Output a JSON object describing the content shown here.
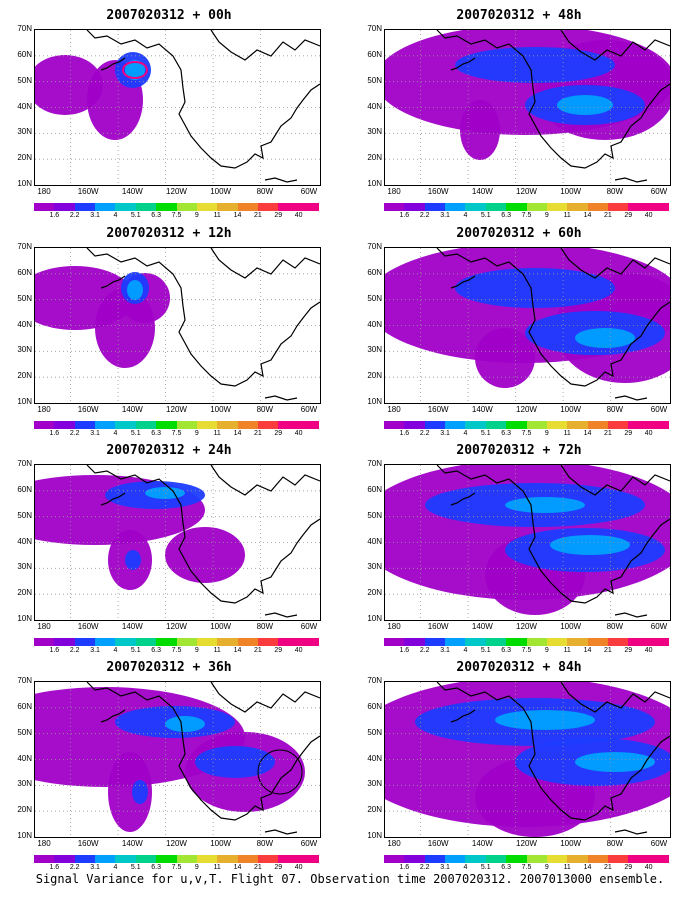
{
  "panels": [
    {
      "title": "2007020312 + 00h",
      "col": 0,
      "row": 0,
      "spread": 0
    },
    {
      "title": "2007020312 + 12h",
      "col": 0,
      "row": 1,
      "spread": 1
    },
    {
      "title": "2007020312 + 24h",
      "col": 0,
      "row": 2,
      "spread": 2
    },
    {
      "title": "2007020312 + 36h",
      "col": 0,
      "row": 3,
      "spread": 3
    },
    {
      "title": "2007020312 + 48h",
      "col": 1,
      "row": 0,
      "spread": 4
    },
    {
      "title": "2007020312 + 60h",
      "col": 1,
      "row": 1,
      "spread": 5
    },
    {
      "title": "2007020312 + 72h",
      "col": 1,
      "row": 2,
      "spread": 6
    },
    {
      "title": "2007020312 + 84h",
      "col": 1,
      "row": 3,
      "spread": 7
    }
  ],
  "lat_labels": [
    "70N",
    "60N",
    "50N",
    "40N",
    "30N",
    "20N",
    "10N"
  ],
  "lon_labels": [
    "180",
    "160W",
    "140W",
    "120W",
    "100W",
    "80W",
    "60W"
  ],
  "colorbar": {
    "labels": [
      "1.6",
      "2.2",
      "3.1",
      "4",
      "5.1",
      "6.3",
      "7.5",
      "9",
      "11",
      "14",
      "21",
      "29",
      "40"
    ],
    "colors": [
      "#a000c8",
      "#8200dc",
      "#1e3cff",
      "#00a0ff",
      "#00c8c8",
      "#00d28c",
      "#00dc00",
      "#a0e632",
      "#e6dc32",
      "#e6af2d",
      "#f08228",
      "#fa3c3c",
      "#f00082"
    ]
  },
  "footer": "Signal Variance for u,v,T. Flight 07. Observation time 2007020312. 2007013000 ensemble."
}
